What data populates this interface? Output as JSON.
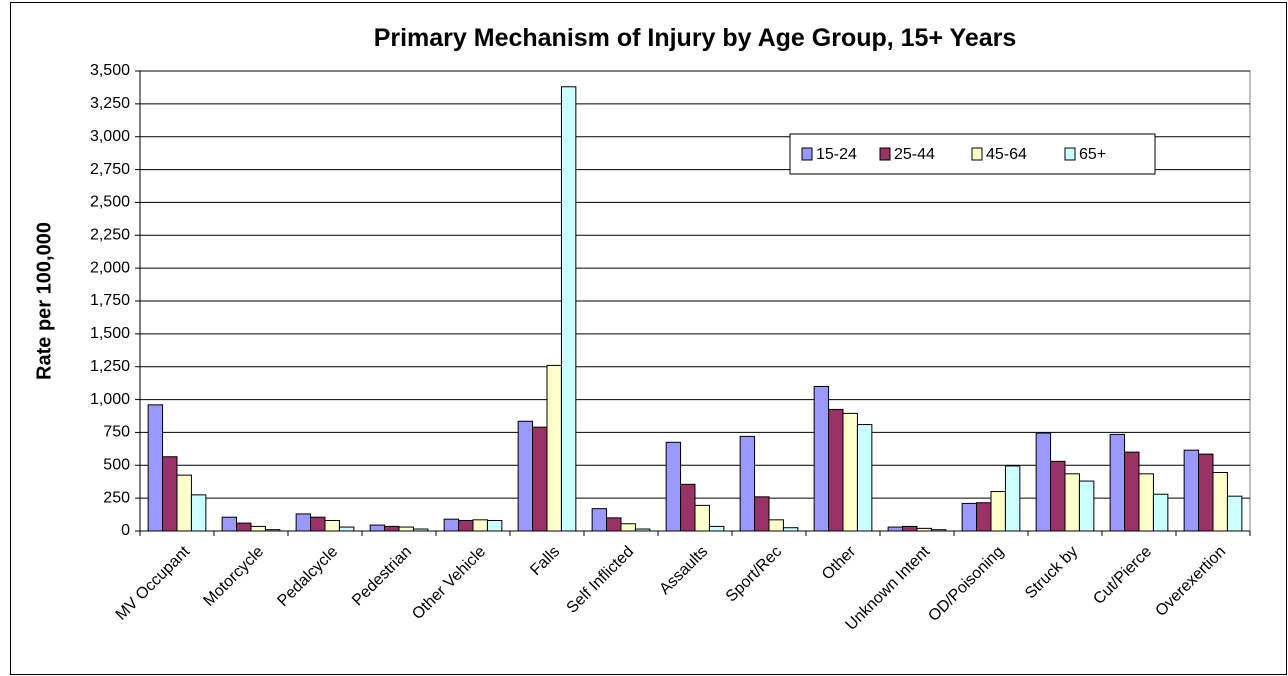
{
  "chart_data": {
    "type": "bar",
    "title": "Primary Mechanism of Injury by Age Group, 15+ Years",
    "y_label": "Rate per 100,000",
    "categories": [
      "MV Occupant",
      "Motorcycle",
      "Pedalcycle",
      "Pedestrian",
      "Other Vehicle",
      "Falls",
      "Self Inflicted",
      "Assaults",
      "Sport/Rec",
      "Other",
      "Unknown Intent",
      "OD/Poisoning",
      "Struck by",
      "Cut/Pierce",
      "Overexertion"
    ],
    "series": [
      {
        "name": "15-24",
        "color": "#9999ff",
        "values": [
          960,
          105,
          130,
          45,
          90,
          835,
          170,
          675,
          720,
          1100,
          30,
          210,
          745,
          735,
          615
        ]
      },
      {
        "name": "25-44",
        "color": "#993366",
        "values": [
          565,
          60,
          105,
          35,
          80,
          790,
          100,
          355,
          260,
          925,
          35,
          215,
          530,
          600,
          585
        ]
      },
      {
        "name": "45-64",
        "color": "#ffffcc",
        "values": [
          425,
          35,
          80,
          30,
          85,
          1260,
          55,
          195,
          85,
          895,
          20,
          300,
          435,
          435,
          445
        ]
      },
      {
        "name": "65+",
        "color": "#ccffff",
        "values": [
          275,
          10,
          30,
          15,
          80,
          3380,
          15,
          35,
          25,
          810,
          10,
          495,
          380,
          280,
          265
        ]
      }
    ],
    "ylim": [
      0,
      3500
    ],
    "yticks": [
      0,
      250,
      500,
      750,
      {
        "value": 1000,
        "label": "1,000"
      },
      {
        "value": 1250,
        "label": "1,250"
      },
      {
        "value": 1500,
        "label": "1,500"
      },
      {
        "value": 1750,
        "label": "1,750"
      },
      {
        "value": 2000,
        "label": "2,000"
      },
      {
        "value": 2250,
        "label": "2,250"
      },
      {
        "value": 2500,
        "label": "2,500"
      },
      {
        "value": 2750,
        "label": "2,750"
      },
      {
        "value": 3000,
        "label": "3,000"
      },
      {
        "value": 3250,
        "label": "3,250"
      },
      {
        "value": 3500,
        "label": "3,500"
      }
    ],
    "grid": true,
    "legend": "top-right"
  }
}
